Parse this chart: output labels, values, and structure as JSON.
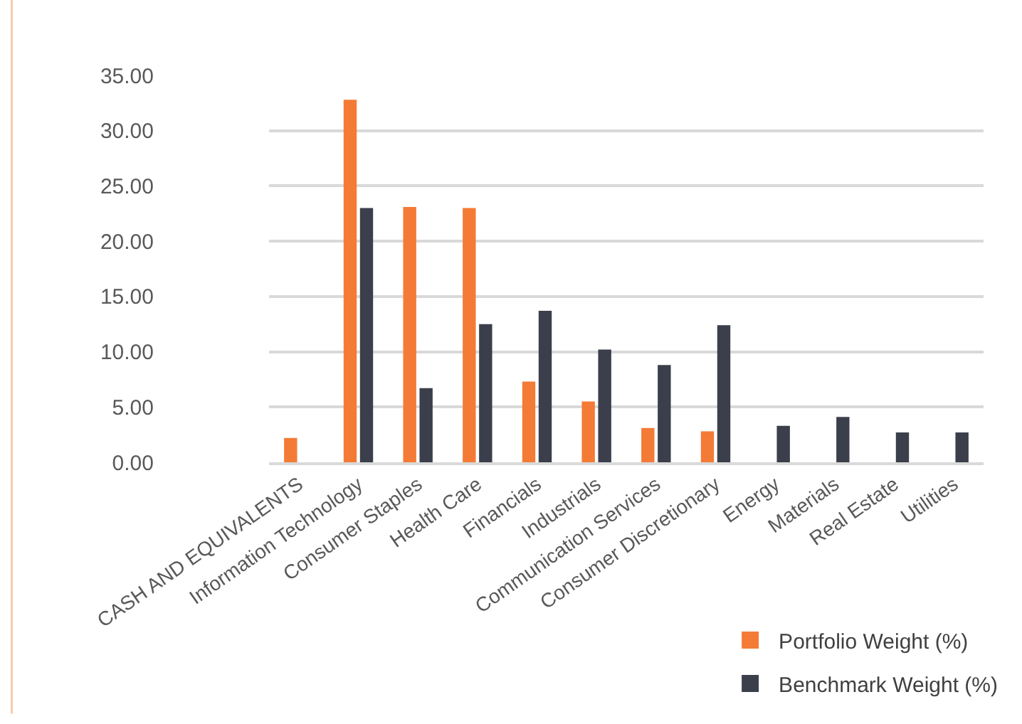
{
  "chart_data": {
    "type": "bar",
    "categories": [
      "CASH AND EQUIVALENTS",
      "Information Technology",
      "Consumer Staples",
      "Health Care",
      "Financials",
      "Industrials",
      "Communication Services",
      "Consumer Discretionary",
      "Energy",
      "Materials",
      "Real Estate",
      "Utilities"
    ],
    "series": [
      {
        "name": "Portfolio Weight (%)",
        "color": "#f47b36",
        "values": [
          2.2,
          32.8,
          23.1,
          23.0,
          7.3,
          5.5,
          3.1,
          2.8,
          null,
          null,
          null,
          null
        ]
      },
      {
        "name": "Benchmark Weight (%)",
        "color": "#3b3f4b",
        "values": [
          null,
          23.0,
          6.7,
          12.5,
          13.7,
          10.2,
          8.8,
          12.4,
          3.3,
          4.1,
          2.7,
          2.7
        ]
      }
    ],
    "ylim": [
      0,
      35
    ],
    "yticks": [
      {
        "value": 0,
        "label": "0.00"
      },
      {
        "value": 5,
        "label": "5.00"
      },
      {
        "value": 10,
        "label": "10.00"
      },
      {
        "value": 15,
        "label": "15.00"
      },
      {
        "value": 20,
        "label": "20.00"
      },
      {
        "value": 25,
        "label": "25.00"
      },
      {
        "value": 30,
        "label": "30.00"
      },
      {
        "value": 35,
        "label": "35.00"
      }
    ],
    "grid": "y",
    "legend": "bottom right"
  }
}
